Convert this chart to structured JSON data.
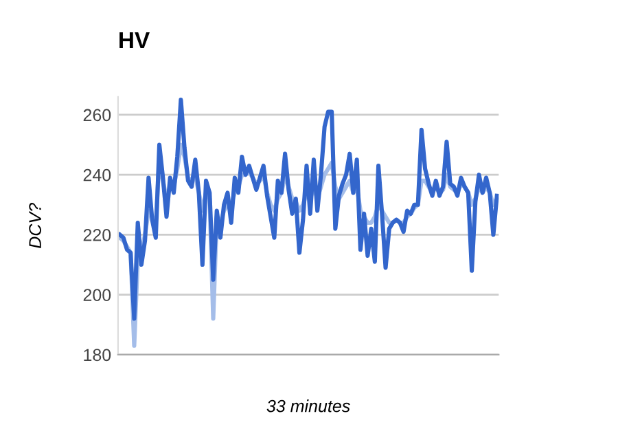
{
  "chart_data": {
    "type": "line",
    "title": "HV",
    "xlabel": "33 minutes",
    "ylabel": "DCV?",
    "categories": [
      null,
      null,
      null,
      null,
      null,
      null,
      null,
      null,
      null,
      null,
      null,
      null,
      null,
      null,
      null,
      null,
      null,
      null,
      null,
      null,
      null,
      null,
      null,
      null,
      null,
      null,
      null,
      null,
      null,
      null,
      null,
      null,
      null,
      null,
      null,
      null,
      null,
      null,
      null,
      null,
      null,
      null,
      null,
      null,
      null,
      null,
      null,
      null,
      null,
      null,
      null,
      null,
      null,
      null,
      null,
      null,
      null,
      null,
      null,
      null,
      null,
      null,
      null,
      null,
      null,
      null,
      null,
      null,
      null,
      null,
      null,
      null,
      null,
      null,
      null,
      null,
      null,
      null,
      null,
      null,
      null,
      null,
      null,
      null,
      null,
      null,
      null,
      null,
      null,
      null,
      null,
      null,
      null,
      null,
      null,
      null,
      null,
      null,
      null,
      null,
      null,
      null,
      null,
      null,
      null,
      null
    ],
    "series": [
      {
        "color": "#a4bde9",
        "values": [
          219,
          218,
          216,
          214,
          183,
          212,
          214,
          220,
          228,
          226,
          224,
          245,
          238,
          232,
          236,
          236,
          242,
          250,
          246,
          239,
          238,
          240,
          234,
          228,
          234,
          232,
          192,
          226,
          224,
          228,
          230,
          230,
          234,
          236,
          240,
          240,
          241,
          239,
          237,
          238,
          240,
          234,
          230,
          228,
          232,
          234,
          240,
          236,
          232,
          231,
          228,
          230,
          234,
          232,
          236,
          232,
          236,
          240,
          242,
          244,
          236,
          232,
          234,
          236,
          238,
          234,
          236,
          228,
          226,
          224,
          224,
          226,
          230,
          228,
          226,
          224,
          224,
          225,
          224,
          224,
          226,
          227,
          229,
          230,
          238,
          238,
          236,
          234,
          236,
          234,
          235,
          240,
          236,
          235,
          234,
          237,
          236,
          234,
          230,
          232,
          236,
          234,
          236,
          234,
          230,
          232
        ]
      },
      {
        "color": "#3366cc",
        "values": [
          220,
          219,
          215,
          214,
          192,
          224,
          210,
          218,
          239,
          225,
          219,
          250,
          239,
          226,
          239,
          234,
          246,
          265,
          249,
          238,
          236,
          245,
          234,
          210,
          238,
          234,
          205,
          228,
          219,
          230,
          234,
          224,
          239,
          234,
          246,
          240,
          243,
          239,
          235,
          239,
          243,
          233,
          226,
          219,
          238,
          234,
          247,
          235,
          227,
          232,
          214,
          225,
          243,
          227,
          245,
          228,
          240,
          256,
          261,
          261,
          222,
          233,
          237,
          240,
          247,
          234,
          245,
          215,
          227,
          213,
          222,
          211,
          243,
          227,
          209,
          222,
          224,
          225,
          224,
          221,
          228,
          227,
          230,
          230,
          255,
          242,
          237,
          233,
          238,
          233,
          236,
          251,
          237,
          236,
          233,
          239,
          236,
          234,
          208,
          231,
          240,
          234,
          239,
          234,
          220,
          233
        ]
      }
    ],
    "ylim": [
      180,
      266
    ],
    "yticks": [
      180,
      200,
      220,
      240,
      260
    ],
    "grid": "y"
  }
}
